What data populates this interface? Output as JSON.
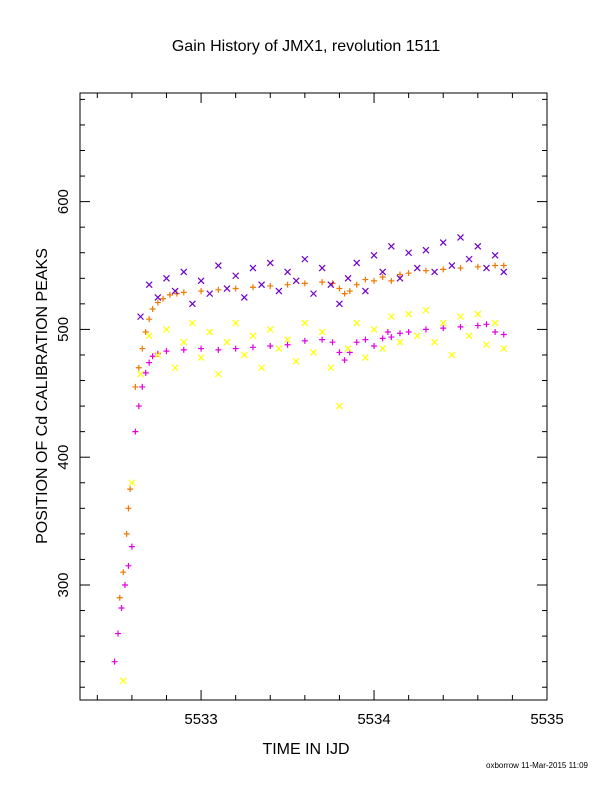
{
  "chart_data": {
    "type": "scatter",
    "title": "Gain History of JMX1, revolution 1511",
    "xlabel": "TIME IN IJD",
    "ylabel": "POSITION OF Cd CALIBRATION PEAKS",
    "xlim": [
      5532.3,
      5535.0
    ],
    "ylim": [
      210,
      685
    ],
    "x_ticks": [
      5533,
      5534,
      5535
    ],
    "y_ticks": [
      300,
      400,
      500,
      600
    ],
    "grid": false,
    "legend": "none",
    "footer": "oxborrow 11-Mar-2015 11:09",
    "series": [
      {
        "marker": "cross",
        "color": "#f07800",
        "points": [
          [
            5532.53,
            290
          ],
          [
            5532.55,
            310
          ],
          [
            5532.57,
            340
          ],
          [
            5532.58,
            360
          ],
          [
            5532.59,
            375
          ],
          [
            5532.62,
            455
          ],
          [
            5532.64,
            470
          ],
          [
            5532.66,
            485
          ],
          [
            5532.68,
            498
          ],
          [
            5532.7,
            508
          ],
          [
            5532.72,
            516
          ],
          [
            5532.75,
            521
          ],
          [
            5532.78,
            524
          ],
          [
            5532.82,
            527
          ],
          [
            5532.86,
            528
          ],
          [
            5532.9,
            529
          ],
          [
            5533.0,
            530
          ],
          [
            5533.1,
            531
          ],
          [
            5533.2,
            532
          ],
          [
            5533.3,
            533
          ],
          [
            5533.4,
            534
          ],
          [
            5533.5,
            535
          ],
          [
            5533.6,
            536
          ],
          [
            5533.7,
            537
          ],
          [
            5533.76,
            536
          ],
          [
            5533.8,
            532
          ],
          [
            5533.83,
            528
          ],
          [
            5533.86,
            530
          ],
          [
            5533.9,
            535
          ],
          [
            5533.95,
            539
          ],
          [
            5534.0,
            538
          ],
          [
            5534.05,
            541
          ],
          [
            5534.1,
            538
          ],
          [
            5534.15,
            543
          ],
          [
            5534.2,
            544
          ],
          [
            5534.3,
            546
          ],
          [
            5534.4,
            547
          ],
          [
            5534.5,
            548
          ],
          [
            5534.6,
            549
          ],
          [
            5534.7,
            550
          ],
          [
            5534.75,
            550
          ]
        ]
      },
      {
        "marker": "cross",
        "color": "#e000e0",
        "points": [
          [
            5532.5,
            240
          ],
          [
            5532.52,
            262
          ],
          [
            5532.54,
            282
          ],
          [
            5532.56,
            300
          ],
          [
            5532.58,
            315
          ],
          [
            5532.6,
            330
          ],
          [
            5532.62,
            420
          ],
          [
            5532.64,
            440
          ],
          [
            5532.66,
            455
          ],
          [
            5532.68,
            466
          ],
          [
            5532.7,
            474
          ],
          [
            5532.72,
            479
          ],
          [
            5532.75,
            481
          ],
          [
            5532.8,
            483
          ],
          [
            5532.9,
            484
          ],
          [
            5533.0,
            485
          ],
          [
            5533.1,
            484
          ],
          [
            5533.2,
            485
          ],
          [
            5533.3,
            486
          ],
          [
            5533.4,
            487
          ],
          [
            5533.5,
            488
          ],
          [
            5533.6,
            491
          ],
          [
            5533.7,
            492
          ],
          [
            5533.76,
            490
          ],
          [
            5533.8,
            482
          ],
          [
            5533.83,
            476
          ],
          [
            5533.86,
            482
          ],
          [
            5533.9,
            490
          ],
          [
            5533.95,
            492
          ],
          [
            5534.0,
            487
          ],
          [
            5534.05,
            493
          ],
          [
            5534.08,
            498
          ],
          [
            5534.1,
            494
          ],
          [
            5534.15,
            497
          ],
          [
            5534.2,
            498
          ],
          [
            5534.3,
            500
          ],
          [
            5534.4,
            501
          ],
          [
            5534.5,
            502
          ],
          [
            5534.6,
            503
          ],
          [
            5534.65,
            504
          ],
          [
            5534.7,
            498
          ],
          [
            5534.75,
            496
          ]
        ]
      },
      {
        "marker": "x",
        "color": "#7000c8",
        "points": [
          [
            5532.65,
            510
          ],
          [
            5532.7,
            535
          ],
          [
            5532.75,
            525
          ],
          [
            5532.8,
            540
          ],
          [
            5532.85,
            530
          ],
          [
            5532.9,
            545
          ],
          [
            5532.95,
            520
          ],
          [
            5533.0,
            538
          ],
          [
            5533.05,
            528
          ],
          [
            5533.1,
            550
          ],
          [
            5533.15,
            532
          ],
          [
            5533.2,
            542
          ],
          [
            5533.25,
            525
          ],
          [
            5533.3,
            548
          ],
          [
            5533.35,
            535
          ],
          [
            5533.4,
            552
          ],
          [
            5533.45,
            530
          ],
          [
            5533.5,
            545
          ],
          [
            5533.55,
            538
          ],
          [
            5533.6,
            555
          ],
          [
            5533.65,
            528
          ],
          [
            5533.7,
            548
          ],
          [
            5533.75,
            535
          ],
          [
            5533.8,
            520
          ],
          [
            5533.85,
            540
          ],
          [
            5533.9,
            552
          ],
          [
            5533.95,
            530
          ],
          [
            5534.0,
            558
          ],
          [
            5534.05,
            545
          ],
          [
            5534.1,
            565
          ],
          [
            5534.15,
            540
          ],
          [
            5534.2,
            560
          ],
          [
            5534.25,
            548
          ],
          [
            5534.3,
            562
          ],
          [
            5534.35,
            545
          ],
          [
            5534.4,
            568
          ],
          [
            5534.45,
            550
          ],
          [
            5534.5,
            572
          ],
          [
            5534.55,
            555
          ],
          [
            5534.6,
            565
          ],
          [
            5534.65,
            548
          ],
          [
            5534.7,
            558
          ],
          [
            5534.75,
            545
          ]
        ]
      },
      {
        "marker": "x",
        "color": "#ffff00",
        "points": [
          [
            5532.55,
            225
          ],
          [
            5532.6,
            380
          ],
          [
            5532.65,
            465
          ],
          [
            5532.7,
            495
          ],
          [
            5532.75,
            480
          ],
          [
            5532.8,
            500
          ],
          [
            5532.85,
            470
          ],
          [
            5532.9,
            490
          ],
          [
            5532.95,
            505
          ],
          [
            5533.0,
            478
          ],
          [
            5533.05,
            498
          ],
          [
            5533.1,
            465
          ],
          [
            5533.15,
            490
          ],
          [
            5533.2,
            505
          ],
          [
            5533.25,
            480
          ],
          [
            5533.3,
            495
          ],
          [
            5533.35,
            470
          ],
          [
            5533.4,
            500
          ],
          [
            5533.45,
            485
          ],
          [
            5533.5,
            492
          ],
          [
            5533.55,
            475
          ],
          [
            5533.6,
            505
          ],
          [
            5533.65,
            482
          ],
          [
            5533.7,
            498
          ],
          [
            5533.75,
            470
          ],
          [
            5533.8,
            440
          ],
          [
            5533.85,
            485
          ],
          [
            5533.9,
            505
          ],
          [
            5533.95,
            478
          ],
          [
            5534.0,
            500
          ],
          [
            5534.05,
            485
          ],
          [
            5534.1,
            510
          ],
          [
            5534.15,
            490
          ],
          [
            5534.2,
            512
          ],
          [
            5534.25,
            495
          ],
          [
            5534.3,
            515
          ],
          [
            5534.35,
            490
          ],
          [
            5534.4,
            505
          ],
          [
            5534.45,
            480
          ],
          [
            5534.5,
            510
          ],
          [
            5534.55,
            495
          ],
          [
            5534.6,
            512
          ],
          [
            5534.65,
            488
          ],
          [
            5534.7,
            505
          ],
          [
            5534.75,
            485
          ]
        ]
      }
    ]
  }
}
